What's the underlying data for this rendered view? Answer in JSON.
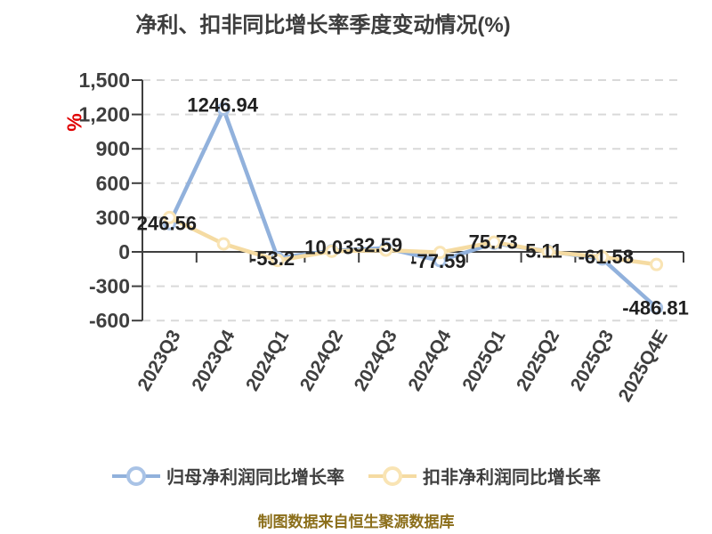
{
  "chart_data": {
    "type": "line",
    "title": "净利、扣非同比增长率季度变动情况(%)",
    "y_axis_unit": "%",
    "categories": [
      "2023Q3",
      "2023Q4",
      "2024Q1",
      "2024Q2",
      "2024Q3",
      "2024Q4",
      "2025Q1",
      "2025Q2",
      "2025Q3",
      "2025Q4E"
    ],
    "series": [
      {
        "name": "归母净利润同比增长率",
        "color": "#91B1DC",
        "marker_stroke": "#A9C3E6",
        "marker_fill": "#FFFFFF",
        "values": [
          246.56,
          1246.94,
          -53.2,
          10.03,
          32.59,
          -77.59,
          75.73,
          5.11,
          -61.58,
          -486.81
        ],
        "data_labels": [
          "246.56",
          "1246.94",
          "-53.2",
          "10.03",
          "32.59",
          "-77.59",
          "75.73",
          "5.11",
          "-61.58",
          "-486.81"
        ],
        "labels_shown": true
      },
      {
        "name": "扣非净利润同比增长率",
        "color": "#F5DBA2",
        "marker_stroke": "#F9E4B4",
        "marker_fill": "#FFFFFF",
        "values": [
          300,
          70,
          -75,
          5,
          15,
          -5,
          85,
          0,
          -45,
          -110
        ],
        "values_estimated": true,
        "labels_shown": false
      }
    ],
    "y_axis": {
      "min": -600,
      "max": 1500,
      "step": 300,
      "tick_labels": [
        "1,500",
        "1,200",
        "900",
        "600",
        "300",
        "0",
        "-300",
        "-600"
      ]
    },
    "grid": "horizontal-dashed",
    "legend_position": "bottom",
    "x_label_rotation_deg": -60,
    "label_offsets": {
      "dx": [
        -3,
        -1,
        -6,
        -3,
        -9,
        -2,
        -1,
        -5,
        4,
        -1
      ],
      "dy": [
        -1,
        -5,
        0,
        -4,
        -4,
        0,
        -2,
        -1,
        -3,
        0
      ]
    }
  },
  "footer": {
    "source_text": "制图数据来自恒生聚源数据库"
  },
  "colors": {
    "grid": "#D9D9D9",
    "axis": "#3F3F3F",
    "title": "#3D3D3D",
    "data_label": "#202020",
    "unit": "#E00000",
    "footer_text": "#8B6E1A",
    "background": "#FFFFFF"
  }
}
